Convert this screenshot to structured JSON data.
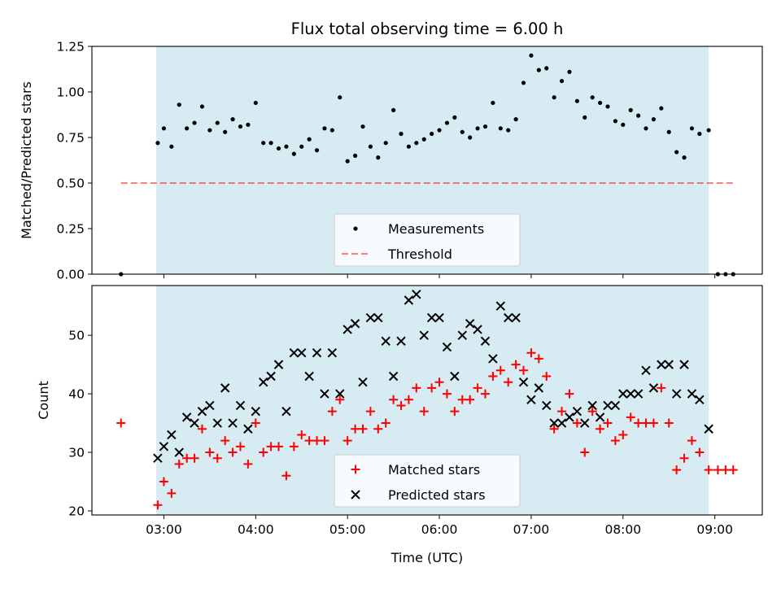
{
  "title": "Flux total observing time = 6.00 h",
  "colors": {
    "shade": "#add8e6",
    "threshold": "#ff0000",
    "measurement": "#000000",
    "matched": "#ff0000",
    "predicted": "#000000"
  },
  "chart_data": [
    {
      "type": "scatter",
      "ylabel": "Matched/Predicted stars",
      "ylim": [
        0,
        1.25
      ],
      "xlim": [
        "02:13",
        "09:31"
      ],
      "yticks": [
        "0.00",
        "0.25",
        "0.50",
        "0.75",
        "1.00",
        "1.25"
      ],
      "shaded_region": [
        "02:55",
        "08:56"
      ],
      "threshold": {
        "value": 0.5,
        "from": "02:32",
        "to": "09:12"
      },
      "legend": {
        "position": "lower center",
        "entries": [
          "Measurements",
          "Threshold"
        ]
      },
      "series": [
        {
          "name": "Measurements",
          "marker": "dot",
          "x": [
            "02:32",
            "02:56",
            "03:00",
            "03:05",
            "03:10",
            "03:15",
            "03:20",
            "03:25",
            "03:30",
            "03:35",
            "03:40",
            "03:45",
            "03:50",
            "03:55",
            "04:00",
            "04:05",
            "04:10",
            "04:15",
            "04:20",
            "04:25",
            "04:30",
            "04:35",
            "04:40",
            "04:45",
            "04:50",
            "04:55",
            "05:00",
            "05:05",
            "05:10",
            "05:15",
            "05:20",
            "05:25",
            "05:30",
            "05:35",
            "05:40",
            "05:45",
            "05:50",
            "05:55",
            "06:00",
            "06:05",
            "06:10",
            "06:15",
            "06:20",
            "06:25",
            "06:30",
            "06:35",
            "06:40",
            "06:45",
            "06:50",
            "06:55",
            "07:00",
            "07:05",
            "07:10",
            "07:15",
            "07:20",
            "07:25",
            "07:30",
            "07:35",
            "07:40",
            "07:45",
            "07:50",
            "07:55",
            "08:00",
            "08:05",
            "08:10",
            "08:15",
            "08:20",
            "08:25",
            "08:30",
            "08:35",
            "08:40",
            "08:45",
            "08:50",
            "08:56",
            "09:02",
            "09:07",
            "09:12"
          ],
          "y": [
            0.0,
            0.72,
            0.8,
            0.7,
            0.93,
            0.8,
            0.83,
            0.92,
            0.79,
            0.83,
            0.78,
            0.85,
            0.81,
            0.82,
            0.94,
            0.72,
            0.72,
            0.69,
            0.7,
            0.66,
            0.7,
            0.74,
            0.68,
            0.8,
            0.79,
            0.97,
            0.62,
            0.65,
            0.81,
            0.7,
            0.64,
            0.72,
            0.9,
            0.77,
            0.7,
            0.72,
            0.74,
            0.77,
            0.79,
            0.83,
            0.86,
            0.78,
            0.75,
            0.8,
            0.81,
            0.94,
            0.8,
            0.79,
            0.85,
            1.05,
            1.2,
            1.12,
            1.13,
            0.97,
            1.06,
            1.11,
            0.95,
            0.86,
            0.97,
            0.94,
            0.92,
            0.84,
            0.82,
            0.9,
            0.87,
            0.8,
            0.85,
            0.91,
            0.78,
            0.67,
            0.64,
            0.8,
            0.77,
            0.79,
            0.0,
            0.0,
            0.0
          ]
        }
      ]
    },
    {
      "type": "scatter",
      "xlabel": "Time (UTC)",
      "ylabel": "Count",
      "ylim": [
        19.3,
        58.5
      ],
      "xlim": [
        "02:13",
        "09:31"
      ],
      "xticks": [
        "03:00",
        "04:00",
        "05:00",
        "06:00",
        "07:00",
        "08:00",
        "09:00"
      ],
      "yticks": [
        "20",
        "30",
        "40",
        "50"
      ],
      "shaded_region": [
        "02:55",
        "08:56"
      ],
      "legend": {
        "position": "lower center",
        "entries": [
          "Matched stars",
          "Predicted stars"
        ]
      },
      "series": [
        {
          "name": "Matched stars",
          "marker": "plus",
          "x": [
            "02:32",
            "02:56",
            "03:00",
            "03:05",
            "03:10",
            "03:15",
            "03:20",
            "03:25",
            "03:30",
            "03:35",
            "03:40",
            "03:45",
            "03:50",
            "03:55",
            "04:00",
            "04:05",
            "04:10",
            "04:15",
            "04:20",
            "04:25",
            "04:30",
            "04:35",
            "04:40",
            "04:45",
            "04:50",
            "04:55",
            "05:00",
            "05:05",
            "05:10",
            "05:15",
            "05:20",
            "05:25",
            "05:30",
            "05:35",
            "05:40",
            "05:45",
            "05:50",
            "05:55",
            "06:00",
            "06:05",
            "06:10",
            "06:15",
            "06:20",
            "06:25",
            "06:30",
            "06:35",
            "06:40",
            "06:45",
            "06:50",
            "06:55",
            "07:00",
            "07:05",
            "07:10",
            "07:15",
            "07:20",
            "07:25",
            "07:30",
            "07:35",
            "07:40",
            "07:45",
            "07:50",
            "07:55",
            "08:00",
            "08:05",
            "08:10",
            "08:15",
            "08:20",
            "08:25",
            "08:30",
            "08:35",
            "08:40",
            "08:45",
            "08:50",
            "08:56",
            "09:02",
            "09:07",
            "09:12"
          ],
          "y": [
            35,
            21,
            25,
            23,
            28,
            29,
            29,
            34,
            30,
            29,
            32,
            30,
            31,
            28,
            35,
            30,
            31,
            31,
            26,
            31,
            33,
            32,
            32,
            32,
            37,
            39,
            32,
            34,
            34,
            37,
            34,
            35,
            39,
            38,
            39,
            41,
            37,
            41,
            42,
            40,
            37,
            39,
            39,
            41,
            40,
            43,
            44,
            42,
            45,
            44,
            47,
            46,
            43,
            34,
            37,
            40,
            35,
            30,
            37,
            34,
            35,
            32,
            33,
            36,
            35,
            35,
            35,
            41,
            35,
            27,
            29,
            32,
            30,
            27,
            27,
            27,
            27
          ]
        },
        {
          "name": "Predicted stars",
          "marker": "x",
          "x": [
            "02:56",
            "03:00",
            "03:05",
            "03:10",
            "03:15",
            "03:20",
            "03:25",
            "03:30",
            "03:35",
            "03:40",
            "03:45",
            "03:50",
            "03:55",
            "04:00",
            "04:05",
            "04:10",
            "04:15",
            "04:20",
            "04:25",
            "04:30",
            "04:35",
            "04:40",
            "04:45",
            "04:50",
            "04:55",
            "05:00",
            "05:05",
            "05:10",
            "05:15",
            "05:20",
            "05:25",
            "05:30",
            "05:35",
            "05:40",
            "05:45",
            "05:50",
            "05:55",
            "06:00",
            "06:05",
            "06:10",
            "06:15",
            "06:20",
            "06:25",
            "06:30",
            "06:35",
            "06:40",
            "06:45",
            "06:50",
            "06:55",
            "07:00",
            "07:05",
            "07:10",
            "07:15",
            "07:20",
            "07:25",
            "07:30",
            "07:35",
            "07:40",
            "07:45",
            "07:50",
            "07:55",
            "08:00",
            "08:05",
            "08:10",
            "08:15",
            "08:20",
            "08:25",
            "08:30",
            "08:35",
            "08:40",
            "08:45",
            "08:50",
            "08:56"
          ],
          "y": [
            29,
            31,
            33,
            30,
            36,
            35,
            37,
            38,
            35,
            41,
            35,
            38,
            34,
            37,
            42,
            43,
            45,
            37,
            47,
            47,
            43,
            47,
            40,
            47,
            40,
            51,
            52,
            42,
            53,
            53,
            49,
            43,
            49,
            56,
            57,
            50,
            53,
            53,
            48,
            43,
            50,
            52,
            51,
            49,
            46,
            55,
            53,
            53,
            42,
            39,
            41,
            38,
            35,
            35,
            36,
            37,
            35,
            38,
            36,
            38,
            38,
            40,
            40,
            40,
            44,
            41,
            45,
            45,
            40,
            45,
            40,
            39,
            34
          ]
        }
      ]
    }
  ]
}
